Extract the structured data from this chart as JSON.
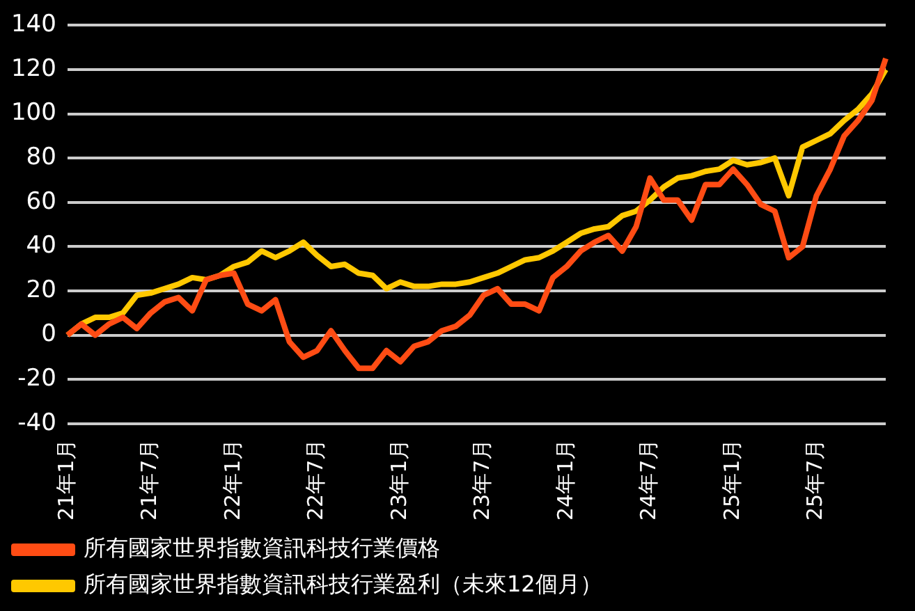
{
  "chart_data": {
    "type": "line",
    "categories": [
      "21年1月",
      null,
      null,
      null,
      null,
      null,
      "21年7月",
      null,
      null,
      null,
      null,
      null,
      "22年1月",
      null,
      null,
      null,
      null,
      null,
      "22年7月",
      null,
      null,
      null,
      null,
      null,
      "23年1月",
      null,
      null,
      null,
      null,
      null,
      "23年7月",
      null,
      null,
      null,
      null,
      null,
      "24年1月",
      null,
      null,
      null,
      null,
      null,
      "24年7月",
      null,
      null,
      null,
      null,
      null,
      "25年1月",
      null,
      null,
      null,
      null,
      null,
      "25年7月",
      null,
      null,
      null,
      null,
      null
    ],
    "series": [
      {
        "name": "所有國家世界指數資訊科技行業價格",
        "color": "#ff4c14",
        "values": [
          0,
          5,
          0,
          5,
          8,
          3,
          10,
          15,
          17,
          11,
          25,
          27,
          28,
          14,
          11,
          16,
          -3,
          -10,
          -7,
          2,
          -7,
          -15,
          -15,
          -7,
          -12,
          -5,
          -3,
          2,
          4,
          9,
          18,
          21,
          14,
          14,
          11,
          26,
          31,
          38,
          42,
          45,
          38,
          49,
          71,
          61,
          61,
          52,
          68,
          68,
          75,
          68,
          59,
          56,
          35,
          40,
          63,
          75,
          90,
          97,
          106,
          125
        ]
      },
      {
        "name": "所有國家世界指數資訊科技行業盈利（未來12個月）",
        "color": "#ffc800",
        "values": [
          0,
          5,
          8,
          8,
          10,
          18,
          19,
          21,
          23,
          26,
          25,
          27,
          31,
          33,
          38,
          35,
          38,
          42,
          36,
          31,
          32,
          28,
          27,
          21,
          24,
          22,
          22,
          23,
          23,
          24,
          26,
          28,
          31,
          34,
          35,
          38,
          42,
          46,
          48,
          49,
          54,
          56,
          61,
          67,
          71,
          72,
          74,
          75,
          79,
          77,
          78,
          80,
          63,
          85,
          88,
          91,
          97,
          102,
          109,
          120
        ]
      }
    ],
    "ylim": [
      -40,
      140
    ],
    "yticks": [
      -40,
      -20,
      0,
      20,
      40,
      60,
      80,
      100,
      120,
      140
    ],
    "grid": "y",
    "legend": "bottom",
    "marker": "none",
    "line_style": "solid"
  }
}
